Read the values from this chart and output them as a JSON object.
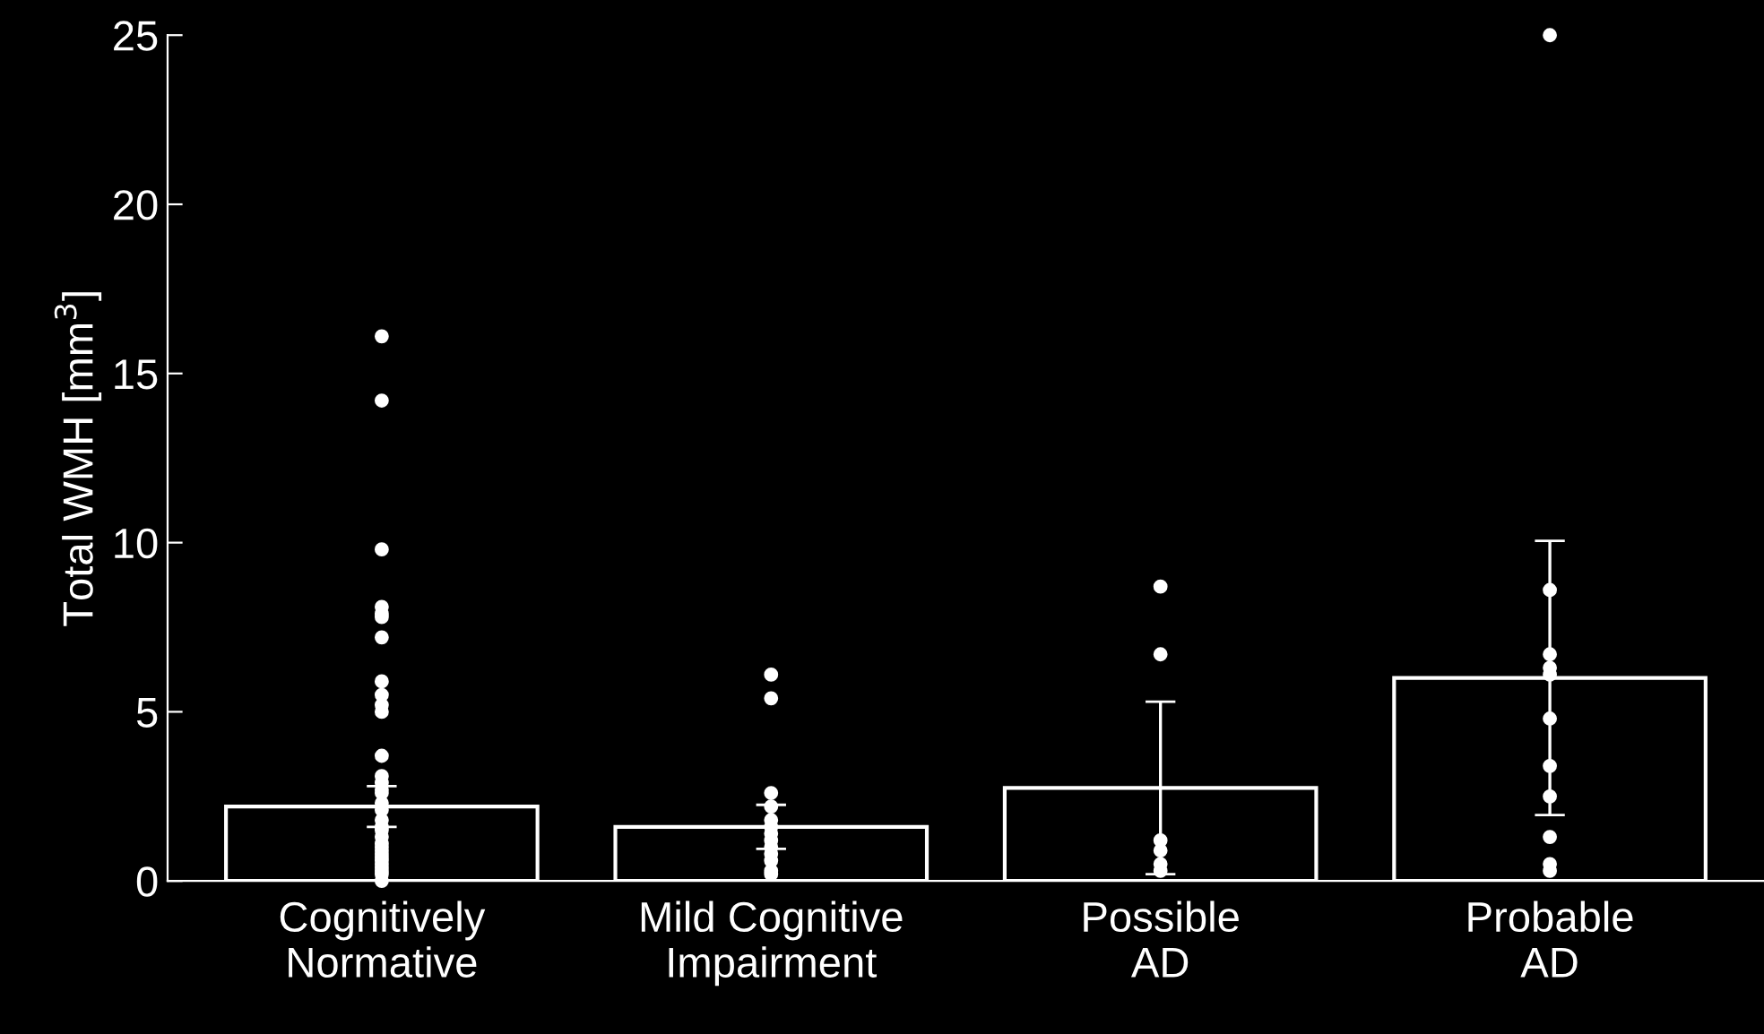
{
  "chart_data": {
    "type": "bar",
    "ylabel": "Total WMH [mm$^{3}$]",
    "categories": [
      "Cognitively\nNormative",
      "Mild Cognitive\nImpairment",
      "Possible\nAD",
      "Probable\nAD"
    ],
    "ylim": [
      0,
      25
    ],
    "yticks": [
      0,
      5,
      10,
      15,
      20,
      25
    ],
    "grid": false,
    "legend": false,
    "series": [
      {
        "color": "#ffffff",
        "values": [
          2.2,
          1.6,
          2.75,
          6.0
        ],
        "errors": [
          0.6,
          0.65,
          2.55,
          4.05
        ]
      },
      {
        "type": "scatter",
        "color": "#ffffff",
        "marker": "circle",
        "x": [
          "Cognitively\nNormative",
          "Cognitively\nNormative",
          "Cognitively\nNormative",
          "Cognitively\nNormative",
          "Cognitively\nNormative",
          "Cognitively\nNormative",
          "Cognitively\nNormative",
          "Cognitively\nNormative",
          "Cognitively\nNormative",
          "Cognitively\nNormative",
          "Cognitively\nNormative",
          "Cognitively\nNormative",
          "Cognitively\nNormative",
          "Cognitively\nNormative",
          "Cognitively\nNormative",
          "Cognitively\nNormative",
          "Cognitively\nNormative",
          "Cognitively\nNormative",
          "Cognitively\nNormative",
          "Cognitively\nNormative",
          "Cognitively\nNormative",
          "Cognitively\nNormative",
          "Cognitively\nNormative",
          "Cognitively\nNormative",
          "Cognitively\nNormative",
          "Cognitively\nNormative",
          "Cognitively\nNormative",
          "Cognitively\nNormative",
          "Cognitively\nNormative",
          "Cognitively\nNormative",
          "Cognitively\nNormative",
          "Cognitively\nNormative",
          "Cognitively\nNormative",
          "Mild Cognitive\nImpairment",
          "Mild Cognitive\nImpairment",
          "Mild Cognitive\nImpairment",
          "Mild Cognitive\nImpairment",
          "Mild Cognitive\nImpairment",
          "Mild Cognitive\nImpairment",
          "Mild Cognitive\nImpairment",
          "Mild Cognitive\nImpairment",
          "Mild Cognitive\nImpairment",
          "Mild Cognitive\nImpairment",
          "Mild Cognitive\nImpairment",
          "Mild Cognitive\nImpairment",
          "Mild Cognitive\nImpairment",
          "Possible\nAD",
          "Possible\nAD",
          "Possible\nAD",
          "Possible\nAD",
          "Possible\nAD",
          "Possible\nAD",
          "Probable\nAD",
          "Probable\nAD",
          "Probable\nAD",
          "Probable\nAD",
          "Probable\nAD",
          "Probable\nAD",
          "Probable\nAD",
          "Probable\nAD",
          "Probable\nAD",
          "Probable\nAD",
          "Probable\nAD"
        ],
        "values": [
          16.1,
          14.2,
          9.8,
          8.1,
          7.9,
          7.8,
          7.2,
          5.9,
          5.5,
          5.2,
          5.0,
          3.7,
          3.1,
          2.9,
          2.7,
          2.6,
          2.3,
          2.1,
          1.8,
          1.6,
          1.5,
          1.3,
          1.1,
          1.0,
          0.9,
          0.8,
          0.7,
          0.6,
          0.5,
          0.4,
          0.3,
          0.2,
          0.0,
          6.1,
          5.4,
          2.6,
          2.2,
          1.8,
          1.6,
          1.4,
          1.2,
          1.0,
          0.8,
          0.6,
          0.3,
          0.2,
          8.7,
          6.7,
          1.2,
          0.9,
          0.5,
          0.3,
          25.0,
          8.6,
          6.7,
          6.3,
          6.1,
          4.8,
          3.4,
          2.5,
          1.3,
          0.5,
          0.3
        ]
      }
    ]
  }
}
